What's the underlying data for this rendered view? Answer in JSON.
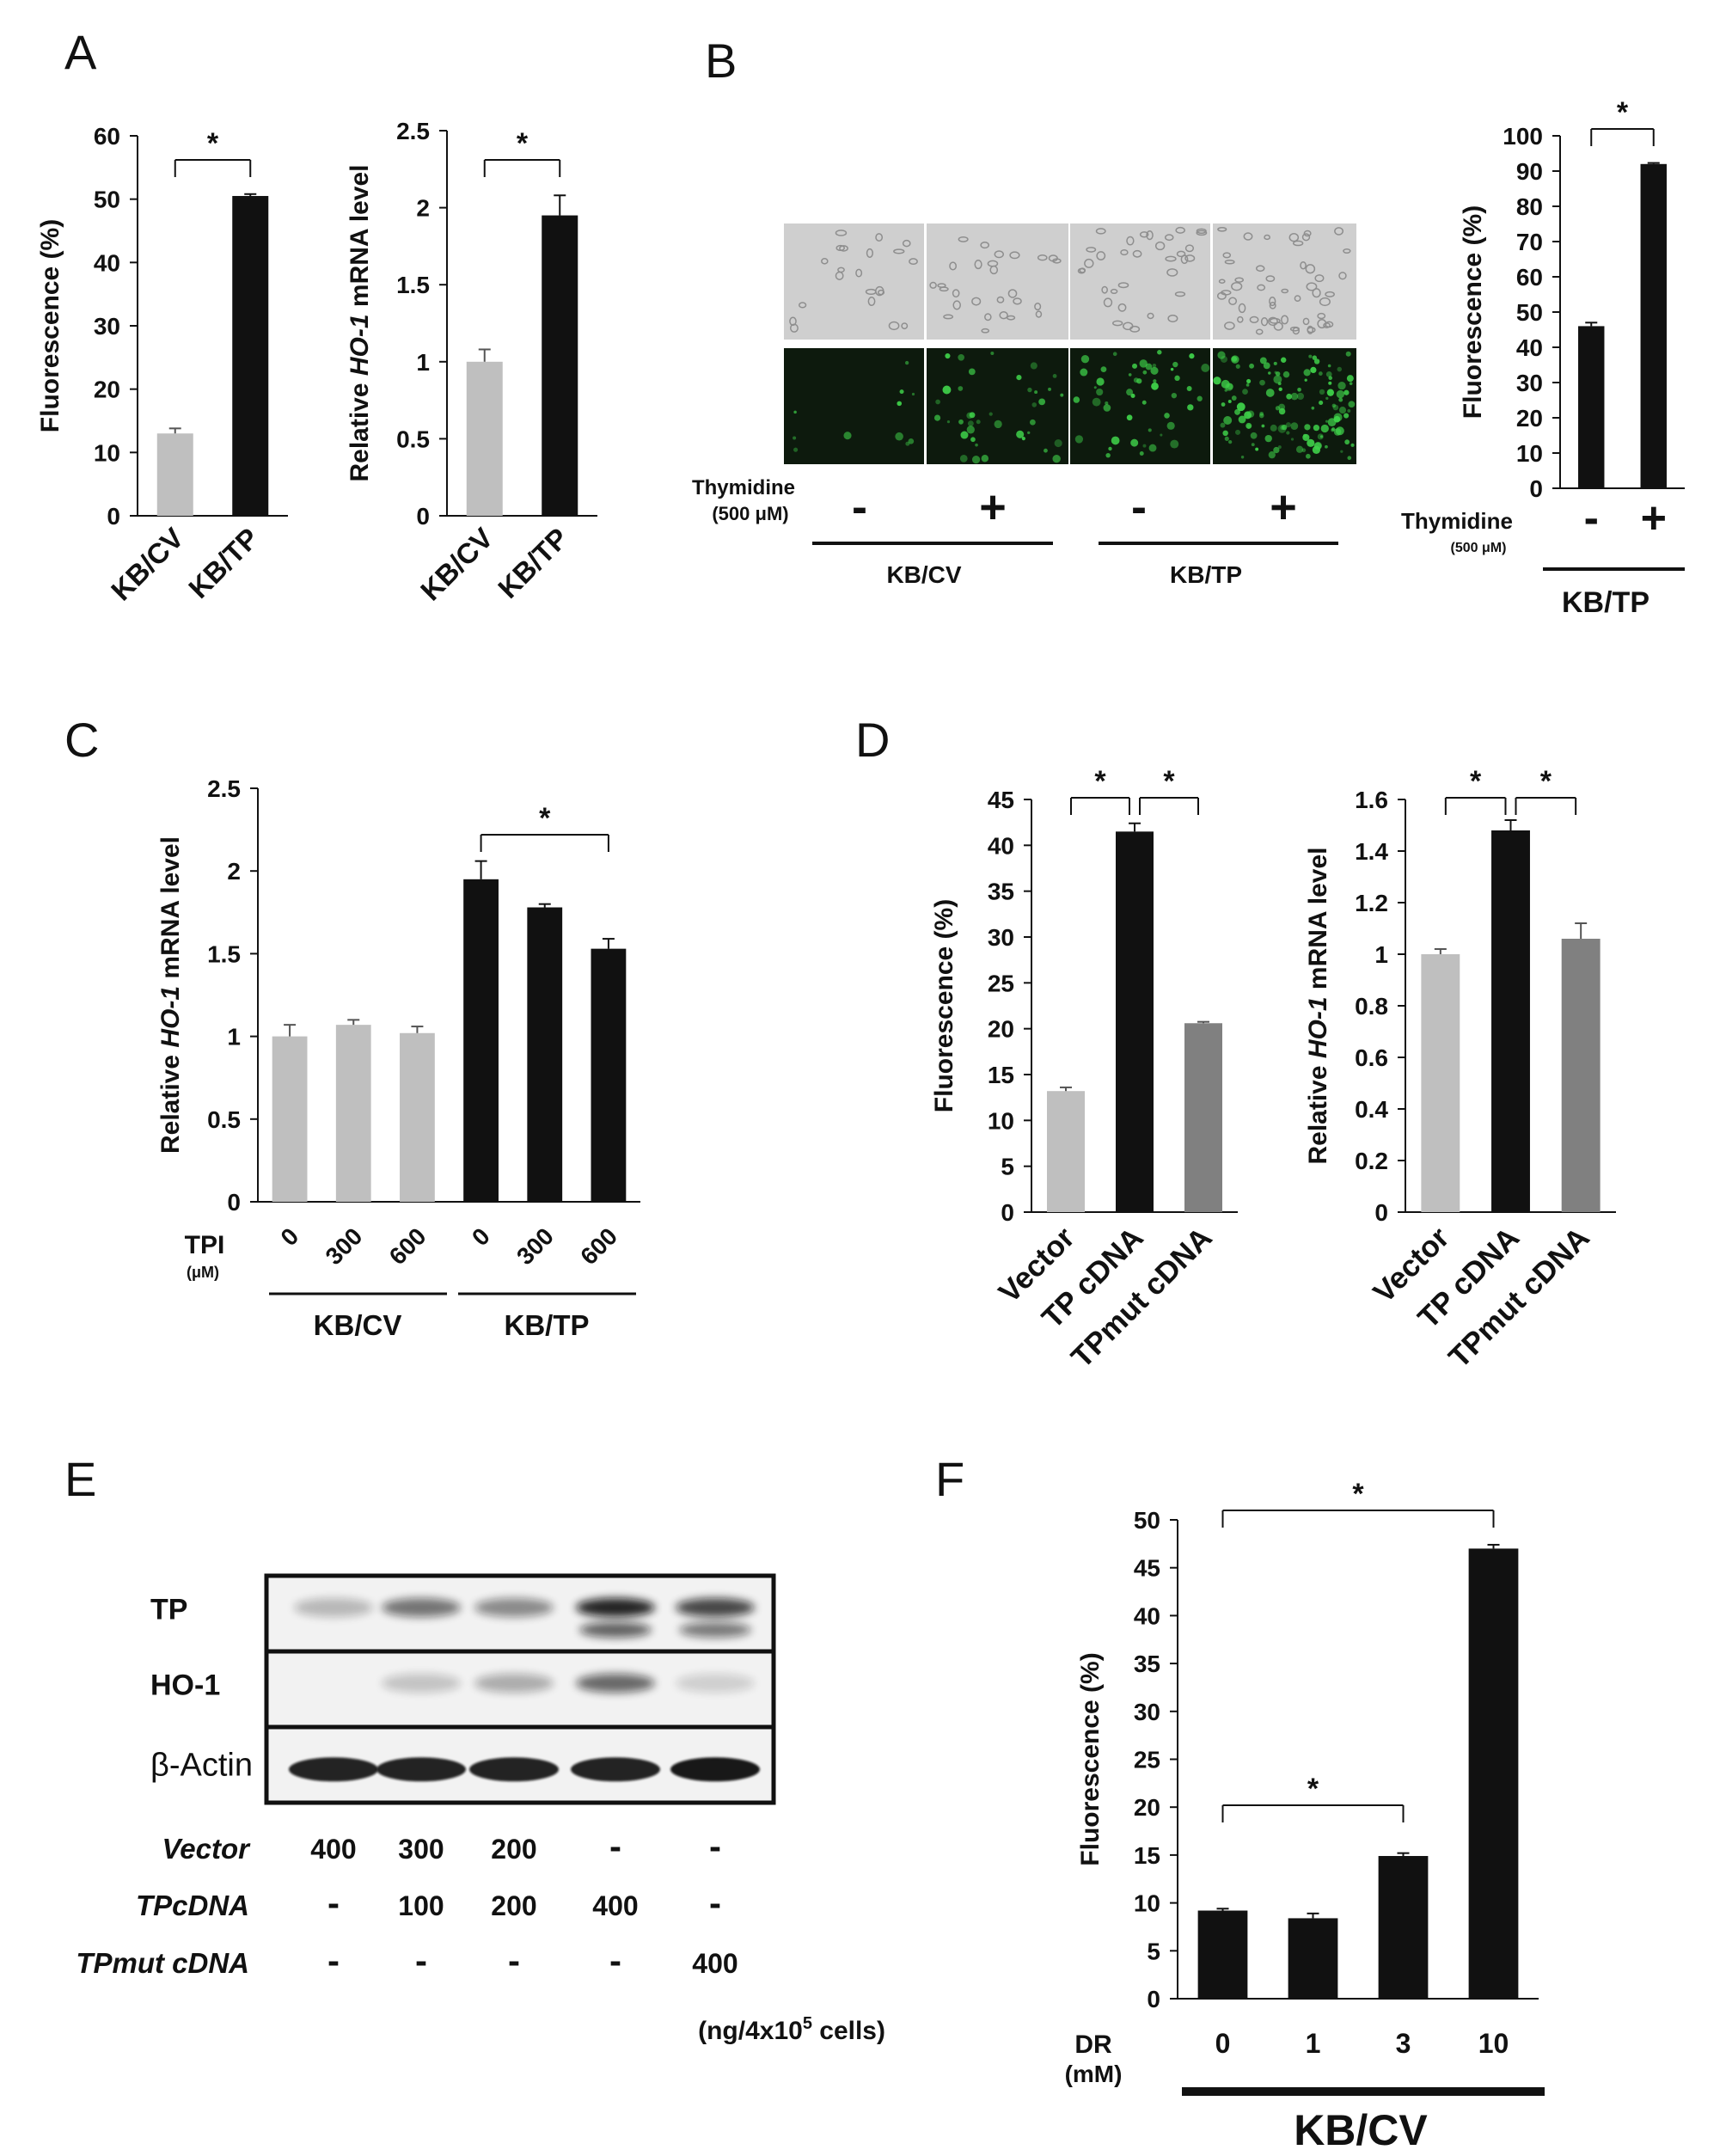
{
  "figure": {
    "panels": [
      "A",
      "B",
      "C",
      "D",
      "E",
      "F"
    ],
    "significance_marker": "*"
  },
  "colors": {
    "kbcv_gray": "#bfbfbf",
    "kbtp_black": "#111111",
    "mut_gray": "#808080",
    "fluor_green": "#3fd24a"
  },
  "chart_data": [
    {
      "id": "A1",
      "panel": "A",
      "type": "bar",
      "categories": [
        "KB/CV",
        "KB/TP"
      ],
      "values": [
        13,
        50.5
      ],
      "errors": [
        0.8,
        0.3
      ],
      "bar_colors": [
        "#bfbfbf",
        "#111111"
      ],
      "ylabel": "Fluorescence (%)",
      "ylim": [
        0,
        60
      ],
      "yticks": [
        "0",
        "10",
        "20",
        "30",
        "40",
        "50",
        "60"
      ],
      "significance": [
        {
          "from": 0,
          "to": 1,
          "label": "*"
        }
      ]
    },
    {
      "id": "A2",
      "panel": "A",
      "type": "bar",
      "categories": [
        "KB/CV",
        "KB/TP"
      ],
      "values": [
        1.0,
        1.95
      ],
      "errors": [
        0.08,
        0.13
      ],
      "bar_colors": [
        "#bfbfbf",
        "#111111"
      ],
      "ylabel": "Relative HO-1 mRNA level",
      "ylim": [
        0,
        2.5
      ],
      "yticks": [
        "0",
        "0.5",
        "1",
        "1.5",
        "2",
        "2.5"
      ],
      "significance": [
        {
          "from": 0,
          "to": 1,
          "label": "*"
        }
      ]
    },
    {
      "id": "B",
      "panel": "B",
      "type": "bar",
      "categories": [
        "-",
        "+"
      ],
      "values": [
        46,
        92
      ],
      "errors": [
        1.0,
        0.3
      ],
      "bar_colors": [
        "#111111",
        "#111111"
      ],
      "ylabel": "Fluorescence (%)",
      "ylim": [
        0,
        100
      ],
      "yticks": [
        "0",
        "10",
        "20",
        "30",
        "40",
        "50",
        "60",
        "70",
        "80",
        "90",
        "100"
      ],
      "xlabel": "Thymidine",
      "xlabel_unit": "(500 μM)",
      "group_label": "KB/TP",
      "significance": [
        {
          "from": 0,
          "to": 1,
          "label": "*"
        }
      ]
    },
    {
      "id": "C",
      "panel": "C",
      "type": "bar",
      "categories": [
        "0",
        "300",
        "600",
        "0",
        "300",
        "600"
      ],
      "values": [
        1.0,
        1.07,
        1.02,
        1.95,
        1.78,
        1.53
      ],
      "errors": [
        0.07,
        0.03,
        0.04,
        0.11,
        0.02,
        0.06
      ],
      "bar_colors": [
        "#bfbfbf",
        "#bfbfbf",
        "#bfbfbf",
        "#111111",
        "#111111",
        "#111111"
      ],
      "ylabel": "Relative HO-1 mRNA level",
      "ylim": [
        0,
        2.5
      ],
      "yticks": [
        "0",
        "0.5",
        "1",
        "1.5",
        "2",
        "2.5"
      ],
      "xlabel": "TPI",
      "xlabel_unit": "(μM)",
      "groups": [
        {
          "label": "KB/CV",
          "from": 0,
          "to": 2
        },
        {
          "label": "KB/TP",
          "from": 3,
          "to": 5
        }
      ],
      "significance": [
        {
          "from": 3,
          "to": 5,
          "label": "*"
        }
      ]
    },
    {
      "id": "D1",
      "panel": "D",
      "type": "bar",
      "categories": [
        "Vector",
        "TP cDNA",
        "TPmut cDNA"
      ],
      "values": [
        13.2,
        41.5,
        20.6
      ],
      "errors": [
        0.4,
        0.9,
        0.15
      ],
      "bar_colors": [
        "#bfbfbf",
        "#111111",
        "#808080"
      ],
      "ylabel": "Fluorescence (%)",
      "ylim": [
        0,
        45
      ],
      "yticks": [
        "0",
        "5",
        "10",
        "15",
        "20",
        "25",
        "30",
        "35",
        "40",
        "45"
      ],
      "significance": [
        {
          "from": 0,
          "to": 1,
          "label": "*"
        },
        {
          "from": 1,
          "to": 2,
          "label": "*"
        }
      ]
    },
    {
      "id": "D2",
      "panel": "D",
      "type": "bar",
      "categories": [
        "Vector",
        "TP cDNA",
        "TPmut cDNA"
      ],
      "values": [
        1.0,
        1.48,
        1.06
      ],
      "errors": [
        0.02,
        0.04,
        0.06
      ],
      "bar_colors": [
        "#bfbfbf",
        "#111111",
        "#808080"
      ],
      "ylabel": "Relative HO-1 mRNA level",
      "ylim": [
        0,
        1.6
      ],
      "yticks": [
        "0",
        "0.2",
        "0.4",
        "0.6",
        "0.8",
        "1",
        "1.2",
        "1.4",
        "1.6"
      ],
      "significance": [
        {
          "from": 0,
          "to": 1,
          "label": "*"
        },
        {
          "from": 1,
          "to": 2,
          "label": "*"
        }
      ]
    },
    {
      "id": "F",
      "panel": "F",
      "type": "bar",
      "categories": [
        "0",
        "1",
        "3",
        "10"
      ],
      "values": [
        9.2,
        8.4,
        14.9,
        47.0
      ],
      "errors": [
        0.2,
        0.5,
        0.3,
        0.4
      ],
      "bar_colors": [
        "#111111",
        "#111111",
        "#111111",
        "#111111"
      ],
      "ylabel": "Fluorescence (%)",
      "ylim": [
        0,
        50
      ],
      "yticks": [
        "0",
        "5",
        "10",
        "15",
        "20",
        "25",
        "30",
        "35",
        "40",
        "45",
        "50"
      ],
      "xlabel": "DR",
      "xlabel_unit": "(mM)",
      "group_label": "KB/CV",
      "significance": [
        {
          "from": 0,
          "to": 2,
          "label": "*"
        },
        {
          "from": 0,
          "to": 3,
          "label": "*"
        }
      ]
    }
  ],
  "panel_b_images": {
    "thymidine_label": "Thymidine",
    "thymidine_unit": "(500 μM)",
    "signs": [
      "-",
      "+",
      "-",
      "+"
    ],
    "group_labels": [
      "KB/CV",
      "KB/TP"
    ]
  },
  "panel_e_blot": {
    "row_labels": [
      "TP",
      "HO-1",
      "β-Actin"
    ],
    "band_intensity": {
      "TP": [
        0.25,
        0.55,
        0.45,
        0.9,
        0.75
      ],
      "HO-1": [
        0.0,
        0.2,
        0.3,
        0.6,
        0.15
      ],
      "β-Actin": [
        0.9,
        0.9,
        0.9,
        0.9,
        0.95
      ]
    },
    "conditions": [
      {
        "label": "Vector",
        "values": [
          "400",
          "300",
          "200",
          "-",
          "-"
        ]
      },
      {
        "label": "TPcDNA",
        "values": [
          "-",
          "100",
          "200",
          "400",
          "-"
        ]
      },
      {
        "label": "TPmut cDNA",
        "values": [
          "-",
          "-",
          "-",
          "-",
          "400"
        ]
      }
    ],
    "unit_note_prefix": "(ng/4x10",
    "unit_note_exp": "5",
    "unit_note_suffix": " cells)"
  }
}
